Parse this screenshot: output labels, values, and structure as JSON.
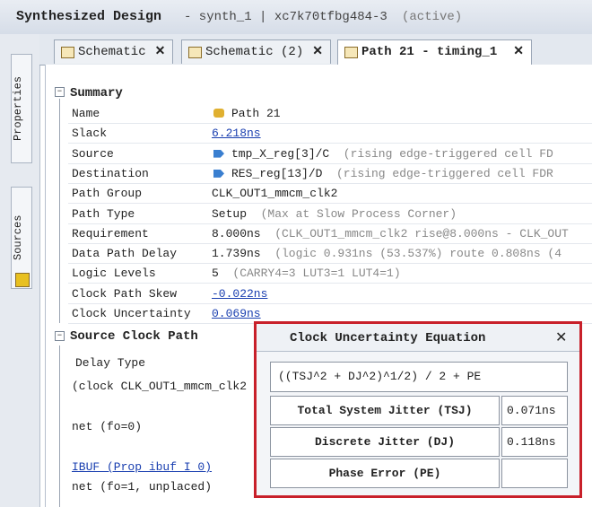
{
  "header": {
    "title": "Synthesized Design",
    "design": "- synth_1 | xc7k70tfbg484-3",
    "status": "(active)"
  },
  "side_tabs": [
    "Properties",
    "Sources"
  ],
  "tabs": [
    "Schematic",
    "Schematic (2)",
    "Path 21 - timing_1"
  ],
  "summary": {
    "title": "Summary",
    "rows": [
      {
        "label": "Name",
        "value": "Path 21"
      },
      {
        "label": "Slack",
        "value": "6.218ns"
      },
      {
        "label": "Source",
        "value": "tmp_X_reg[3]/C",
        "note": "(rising edge-triggered cell FD"
      },
      {
        "label": "Destination",
        "value": "RES_reg[13]/D",
        "note": "(rising edge-triggered cell FDR"
      },
      {
        "label": "Path Group",
        "value": "CLK_OUT1_mmcm_clk2"
      },
      {
        "label": "Path Type",
        "value": "Setup",
        "note": "(Max at Slow Process Corner)"
      },
      {
        "label": "Requirement",
        "value": "8.000ns",
        "note": "(CLK_OUT1_mmcm_clk2 rise@8.000ns - CLK_OUT"
      },
      {
        "label": "Data Path Delay",
        "value": "1.739ns",
        "note": "(logic 0.931ns (53.537%)  route 0.808ns (4"
      },
      {
        "label": "Logic Levels",
        "value": "5",
        "note": "(CARRY4=3 LUT3=1 LUT4=1)"
      },
      {
        "label": "Clock Path Skew",
        "value": "-0.022ns"
      },
      {
        "label": "Clock Uncertainty",
        "value": "0.069ns"
      }
    ]
  },
  "source_clock_path": {
    "title": "Source Clock Path",
    "lines": [
      "Delay Type",
      "(clock CLK_OUT1_mmcm_clk2",
      "net (fo=0)",
      "IBUF (Prop ibuf I 0)",
      "net (fo=1, unplaced)"
    ]
  },
  "popup": {
    "title": "Clock Uncertainty Equation",
    "equation": "((TSJ^2 + DJ^2)^1/2) / 2 + PE",
    "rows": [
      {
        "label": "Total System Jitter (TSJ)",
        "value": "0.071ns"
      },
      {
        "label": "Discrete Jitter (DJ)",
        "value": "0.118ns"
      },
      {
        "label": "Phase Error (PE)"
      }
    ]
  }
}
